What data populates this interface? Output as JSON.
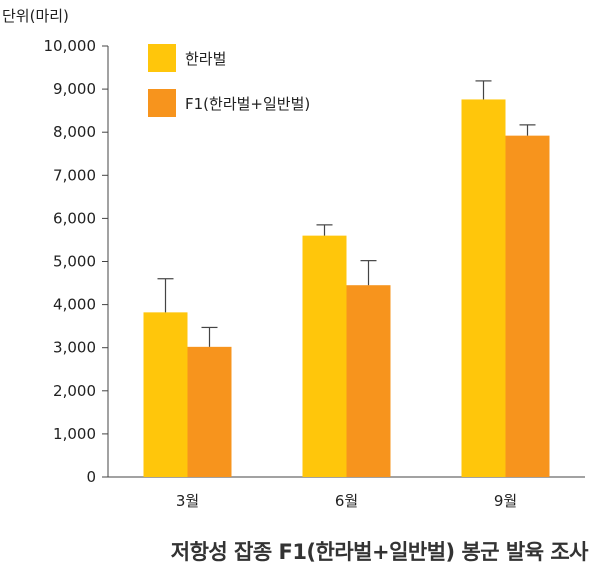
{
  "caption": "저항성 잡종 F1(한라벌+일반벌) 봉군 발육 조사",
  "chart_data": {
    "type": "bar",
    "unit_label": "단위(마리)",
    "categories": [
      "3월",
      "6월",
      "9월"
    ],
    "y_ticks": [
      "0",
      "1,000",
      "2,000",
      "3,000",
      "4,000",
      "5,000",
      "6,000",
      "7,000",
      "8,000",
      "9,000",
      "10,000"
    ],
    "ylim": [
      0,
      10000
    ],
    "legend_position": "top-left",
    "series": [
      {
        "name": "한라벌",
        "color": "#FFC60B",
        "values": [
          3820,
          5600,
          8760
        ],
        "error": [
          780,
          250,
          430
        ]
      },
      {
        "name": "F1(한라벌+일반벌)",
        "color": "#F7941D",
        "values": [
          3020,
          4450,
          7920
        ],
        "error": [
          450,
          570,
          250
        ]
      }
    ]
  }
}
